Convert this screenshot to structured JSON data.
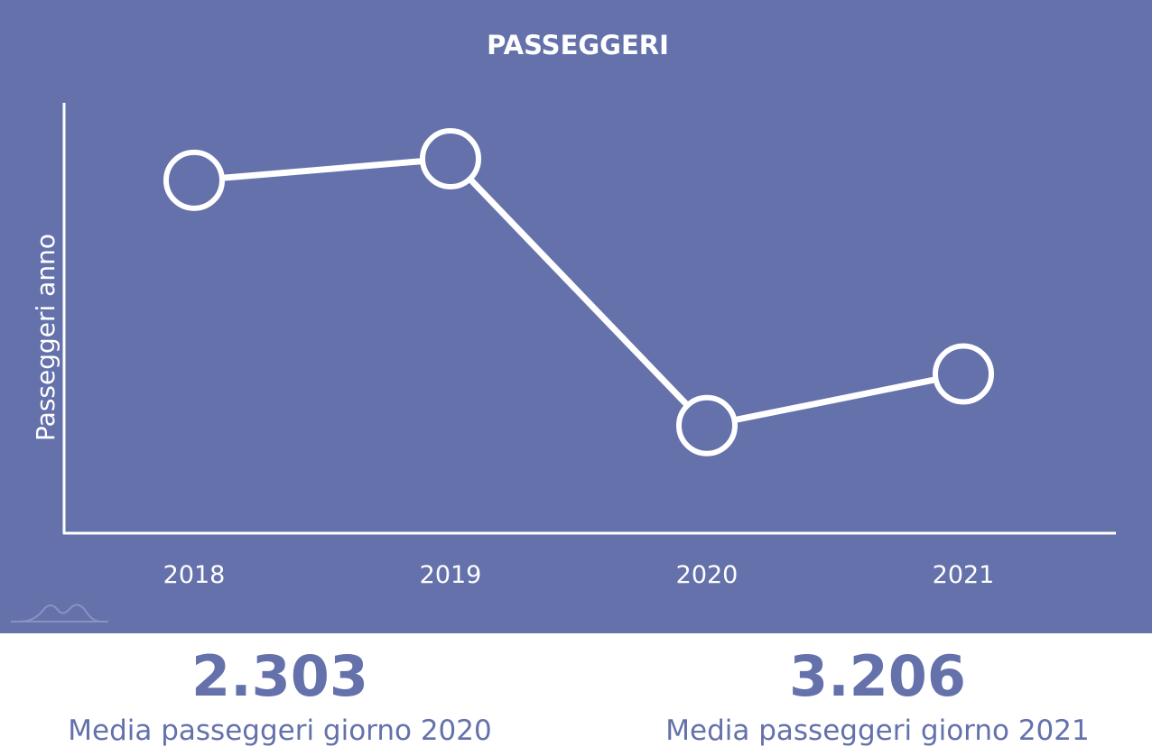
{
  "colors": {
    "panel": "#6471ab",
    "line": "#ffffff",
    "accent_text": "#6471ab"
  },
  "chart_data": {
    "type": "line",
    "title": "PASSEGGERI",
    "ylabel": "Passeggeri anno",
    "xlabel": "",
    "categories": [
      "2018",
      "2019",
      "2020",
      "2021"
    ],
    "series": [
      {
        "values": [
          82,
          87,
          25,
          37
        ]
      }
    ],
    "ylim": [
      0,
      100
    ],
    "grid": false,
    "legend": "none"
  },
  "stats": [
    {
      "value": "2.303",
      "caption": "Media passeggeri giorno 2020"
    },
    {
      "value": "3.206",
      "caption": "Media passeggeri giorno 2021"
    }
  ],
  "logo_icon": "mountain-logo-icon"
}
